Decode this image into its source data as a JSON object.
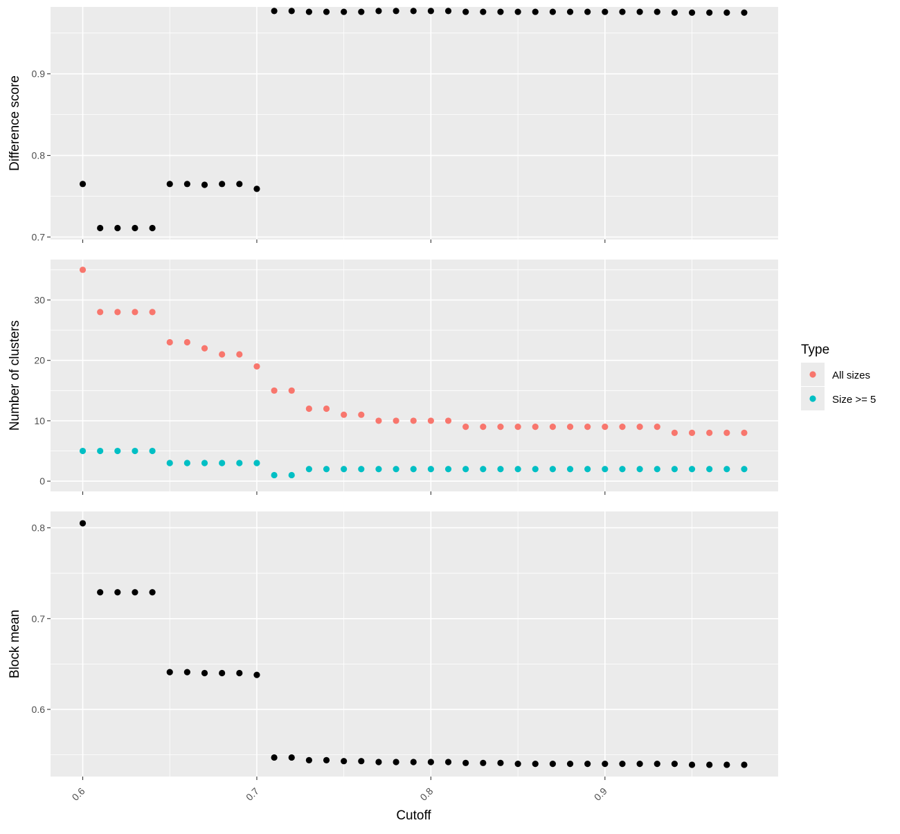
{
  "chart_data": [
    {
      "type": "scatter",
      "panel": "top",
      "ylabel": "Difference score",
      "ylim": [
        0.697,
        0.982
      ],
      "yticks": [
        0.7,
        0.8,
        0.9
      ],
      "ytick_labels": [
        "0.7",
        "0.8",
        "0.9"
      ],
      "x": [
        0.6,
        0.61,
        0.62,
        0.63,
        0.64,
        0.65,
        0.66,
        0.67,
        0.68,
        0.69,
        0.7,
        0.71,
        0.72,
        0.73,
        0.74,
        0.75,
        0.76,
        0.77,
        0.78,
        0.79,
        0.8,
        0.81,
        0.82,
        0.83,
        0.84,
        0.85,
        0.86,
        0.87,
        0.88,
        0.89,
        0.9,
        0.91,
        0.92,
        0.93,
        0.94,
        0.95,
        0.96,
        0.97,
        0.98
      ],
      "series": [
        {
          "color": "#000000",
          "values": [
            0.765,
            0.711,
            0.711,
            0.711,
            0.711,
            0.765,
            0.765,
            0.764,
            0.765,
            0.765,
            0.759,
            0.977,
            0.977,
            0.976,
            0.976,
            0.976,
            0.976,
            0.977,
            0.977,
            0.977,
            0.977,
            0.977,
            0.976,
            0.976,
            0.976,
            0.976,
            0.976,
            0.976,
            0.976,
            0.976,
            0.976,
            0.976,
            0.976,
            0.976,
            0.975,
            0.975,
            0.975,
            0.975,
            0.975
          ]
        }
      ]
    },
    {
      "type": "scatter",
      "panel": "middle",
      "ylabel": "Number of clusters",
      "ylim": [
        -1.7,
        36.7
      ],
      "yticks": [
        0,
        10,
        20,
        30
      ],
      "ytick_labels": [
        "0",
        "10",
        "20",
        "30"
      ],
      "x": [
        0.6,
        0.61,
        0.62,
        0.63,
        0.64,
        0.65,
        0.66,
        0.67,
        0.68,
        0.69,
        0.7,
        0.71,
        0.72,
        0.73,
        0.74,
        0.75,
        0.76,
        0.77,
        0.78,
        0.79,
        0.8,
        0.81,
        0.82,
        0.83,
        0.84,
        0.85,
        0.86,
        0.87,
        0.88,
        0.89,
        0.9,
        0.91,
        0.92,
        0.93,
        0.94,
        0.95,
        0.96,
        0.97,
        0.98
      ],
      "series": [
        {
          "name": "All sizes",
          "color": "#f8766d",
          "values": [
            35,
            28,
            28,
            28,
            28,
            23,
            23,
            22,
            21,
            21,
            19,
            15,
            15,
            12,
            12,
            11,
            11,
            10,
            10,
            10,
            10,
            10,
            9,
            9,
            9,
            9,
            9,
            9,
            9,
            9,
            9,
            9,
            9,
            9,
            8,
            8,
            8,
            8,
            8
          ]
        },
        {
          "name": "Size >= 5",
          "color": "#00bfc4",
          "values": [
            5,
            5,
            5,
            5,
            5,
            3,
            3,
            3,
            3,
            3,
            3,
            1,
            1,
            2,
            2,
            2,
            2,
            2,
            2,
            2,
            2,
            2,
            2,
            2,
            2,
            2,
            2,
            2,
            2,
            2,
            2,
            2,
            2,
            2,
            2,
            2,
            2,
            2,
            2
          ]
        }
      ]
    },
    {
      "type": "scatter",
      "panel": "bottom",
      "ylabel": "Block mean",
      "xlabel": "Cutoff",
      "ylim": [
        0.526,
        0.818
      ],
      "yticks": [
        0.6,
        0.7,
        0.8
      ],
      "ytick_labels": [
        "0.6",
        "0.7",
        "0.8"
      ],
      "x": [
        0.6,
        0.61,
        0.62,
        0.63,
        0.64,
        0.65,
        0.66,
        0.67,
        0.68,
        0.69,
        0.7,
        0.71,
        0.72,
        0.73,
        0.74,
        0.75,
        0.76,
        0.77,
        0.78,
        0.79,
        0.8,
        0.81,
        0.82,
        0.83,
        0.84,
        0.85,
        0.86,
        0.87,
        0.88,
        0.89,
        0.9,
        0.91,
        0.92,
        0.93,
        0.94,
        0.95,
        0.96,
        0.97,
        0.98
      ],
      "series": [
        {
          "color": "#000000",
          "values": [
            0.805,
            0.729,
            0.729,
            0.729,
            0.729,
            0.641,
            0.641,
            0.64,
            0.64,
            0.64,
            0.638,
            0.547,
            0.547,
            0.544,
            0.544,
            0.543,
            0.543,
            0.542,
            0.542,
            0.542,
            0.542,
            0.542,
            0.541,
            0.541,
            0.541,
            0.54,
            0.54,
            0.54,
            0.54,
            0.54,
            0.54,
            0.54,
            0.54,
            0.54,
            0.54,
            0.539,
            0.539,
            0.539,
            0.539
          ]
        }
      ]
    }
  ],
  "x_axis": {
    "xlim": [
      0.5815,
      0.9995
    ],
    "ticks": [
      0.6,
      0.7,
      0.8,
      0.9
    ],
    "tick_labels": [
      "0.6",
      "0.7",
      "0.8",
      "0.9"
    ],
    "title": "Cutoff"
  },
  "legend": {
    "title": "Type",
    "placement": "right",
    "items": [
      {
        "label": "All sizes",
        "color": "#f8766d"
      },
      {
        "label": "Size >= 5",
        "color": "#00bfc4"
      }
    ]
  }
}
